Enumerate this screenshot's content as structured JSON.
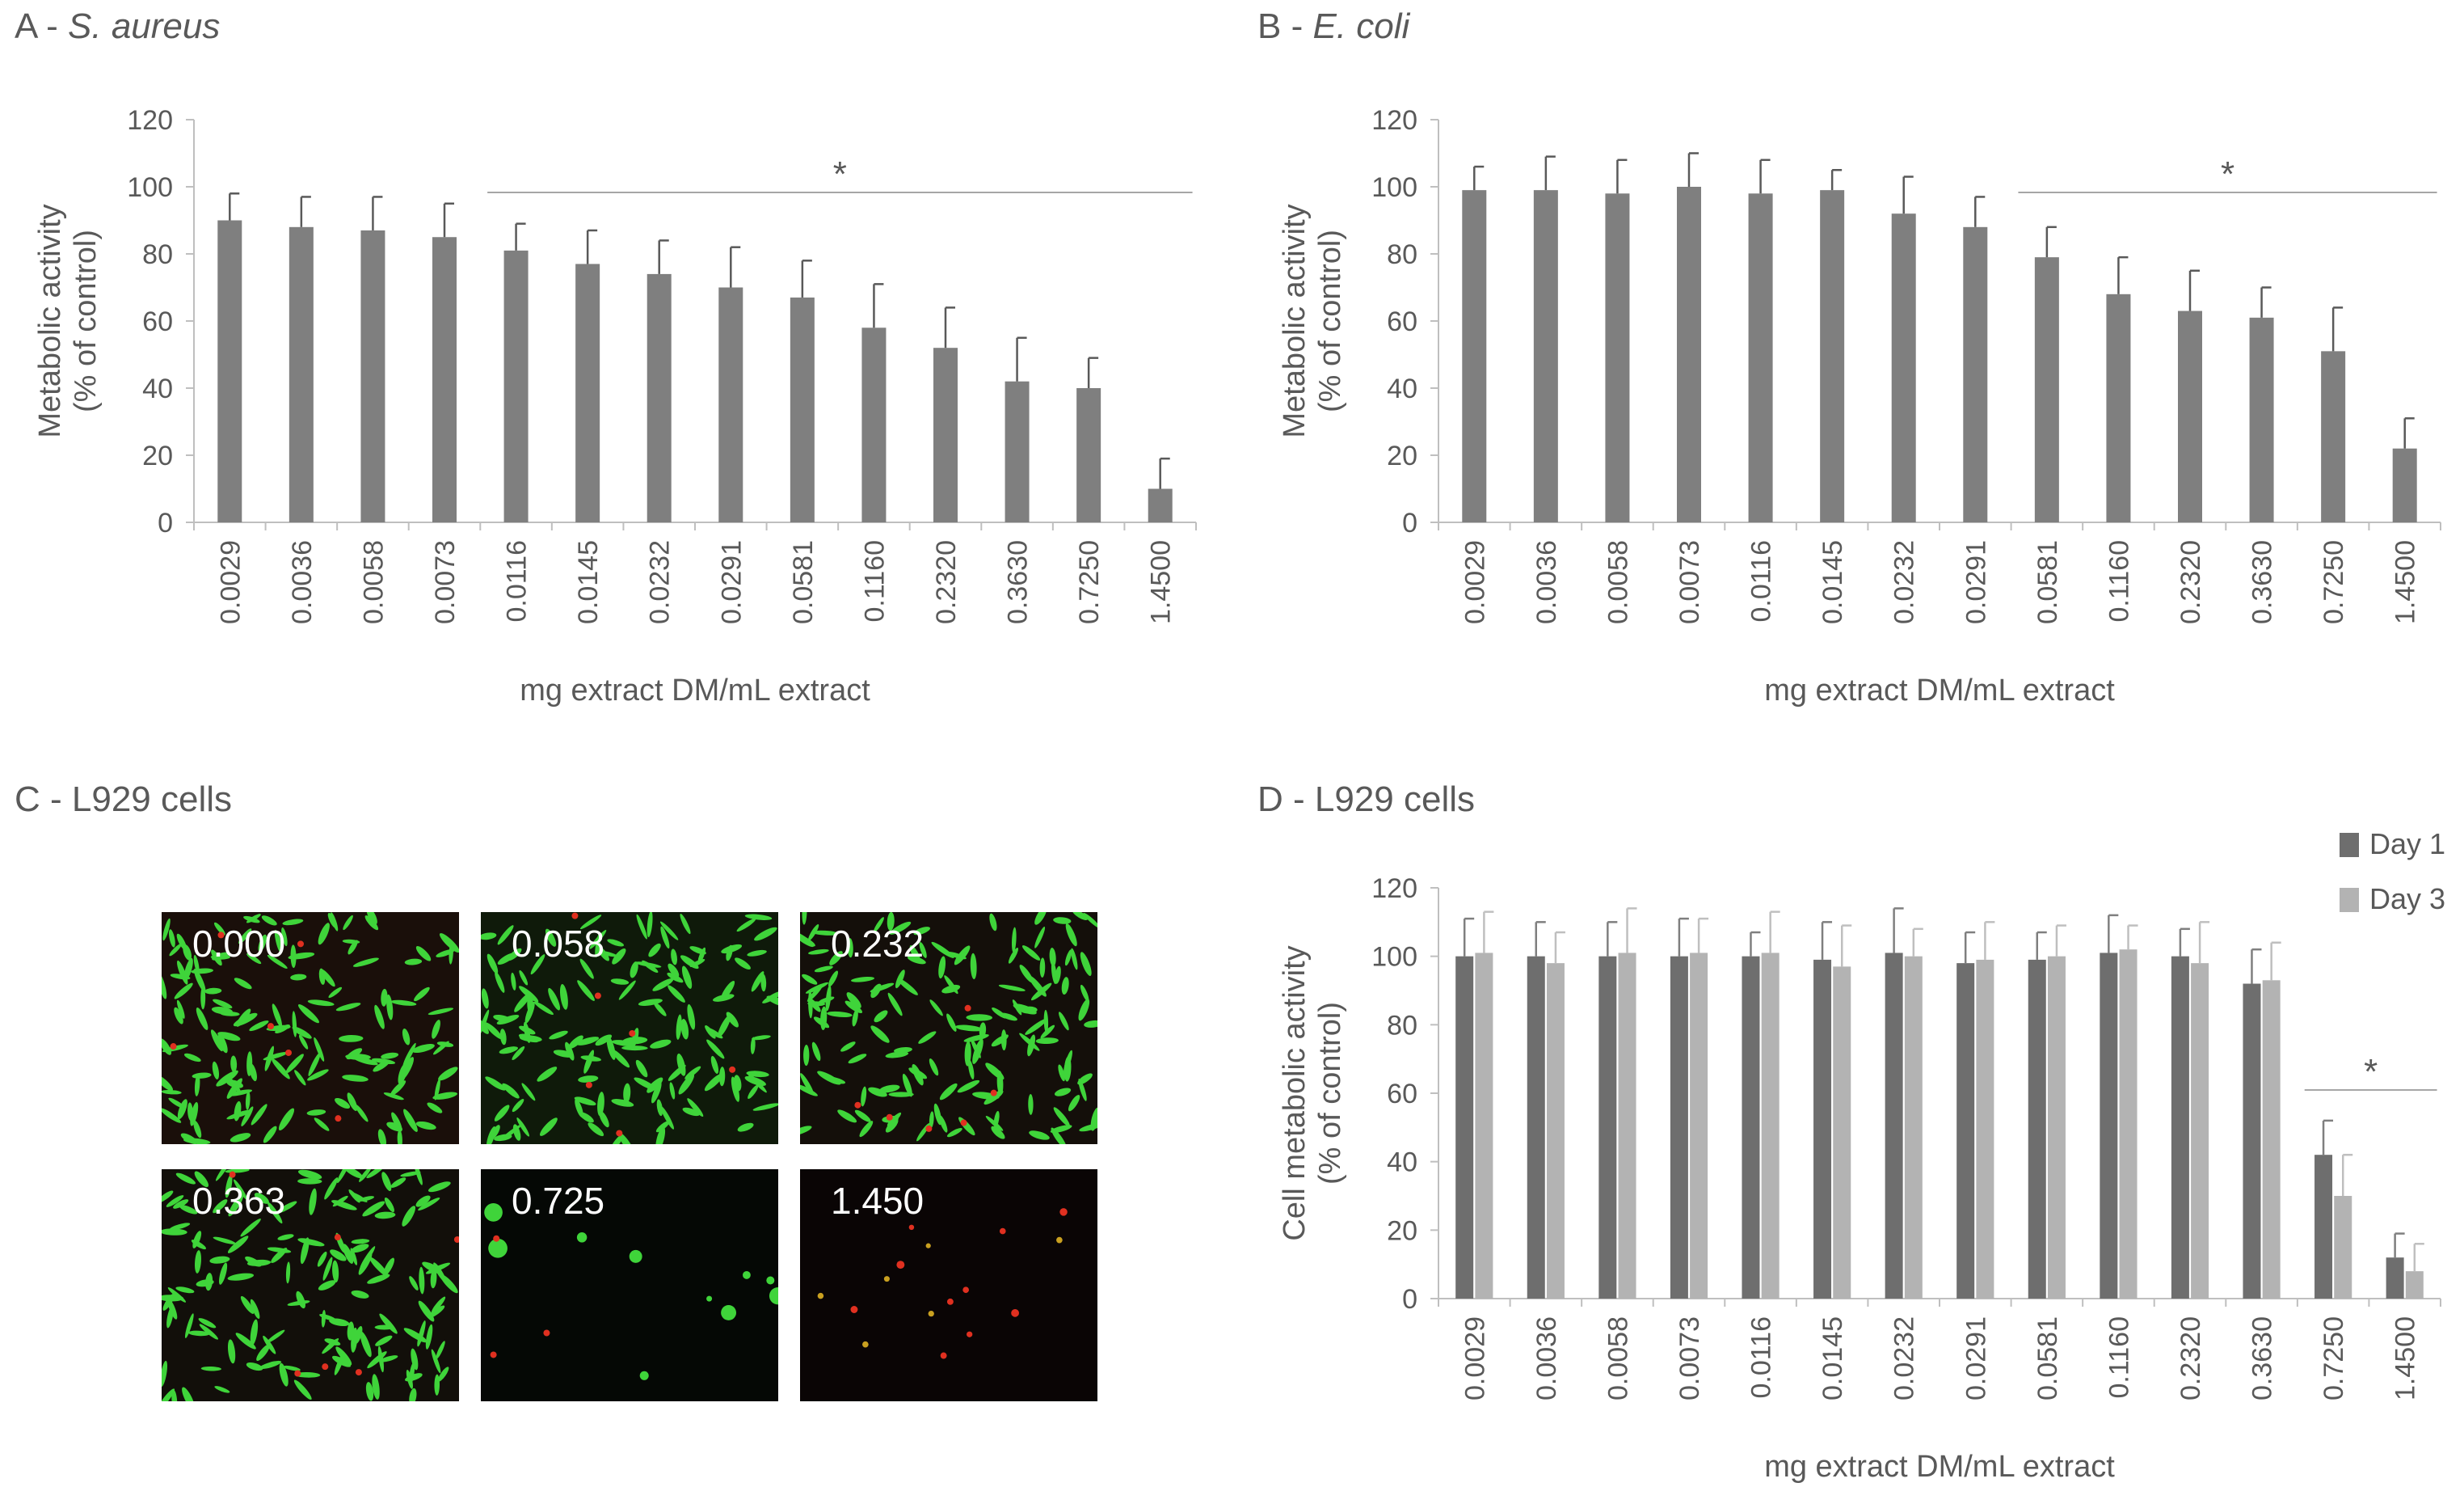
{
  "panels": {
    "a": {
      "letter": "A - ",
      "organism": "S. aureus"
    },
    "b": {
      "letter": "B - ",
      "organism": "E. coli"
    },
    "c": {
      "title": "C - L929 cells"
    },
    "d": {
      "title": "D - L929 cells"
    }
  },
  "micrographs": {
    "items": [
      {
        "label": "0.000",
        "density": "high",
        "bg": "#1a0f0a"
      },
      {
        "label": "0.058",
        "density": "high",
        "bg": "#0f1a0a"
      },
      {
        "label": "0.232",
        "density": "high",
        "bg": "#140f0a"
      },
      {
        "label": "0.363",
        "density": "high",
        "bg": "#120f0a"
      },
      {
        "label": "0.725",
        "density": "sparse",
        "bg": "#050805"
      },
      {
        "label": "1.450",
        "density": "dead",
        "bg": "#0a0505"
      }
    ],
    "colors": {
      "live": "#3fd43a",
      "dead": "#e03020"
    }
  },
  "chart_data": [
    {
      "id": "chart-a",
      "type": "bar",
      "categories": [
        "0.0029",
        "0.0036",
        "0.0058",
        "0.0073",
        "0.0116",
        "0.0145",
        "0.0232",
        "0.0291",
        "0.0581",
        "0.1160",
        "0.2320",
        "0.3630",
        "0.7250",
        "1.4500"
      ],
      "series": [
        {
          "values": [
            90,
            88,
            87,
            85,
            81,
            77,
            74,
            70,
            67,
            58,
            52,
            42,
            40,
            10
          ],
          "errors": [
            8,
            9,
            10,
            10,
            8,
            10,
            10,
            12,
            11,
            13,
            12,
            13,
            9,
            9
          ],
          "color": "#7f7f7f"
        }
      ],
      "title": "",
      "xlabel": "mg extract DM/mL extract",
      "ylabel": [
        "Metabolic activity",
        "(% of control)"
      ],
      "ylim": [
        0,
        120
      ],
      "yticks": [
        0,
        20,
        40,
        60,
        80,
        100,
        120
      ],
      "grid": false,
      "significance": {
        "symbol": "*",
        "from_index": 4,
        "to_index": 13
      }
    },
    {
      "id": "chart-b",
      "type": "bar",
      "categories": [
        "0.0029",
        "0.0036",
        "0.0058",
        "0.0073",
        "0.0116",
        "0.0145",
        "0.0232",
        "0.0291",
        "0.0581",
        "0.1160",
        "0.2320",
        "0.3630",
        "0.7250",
        "1.4500"
      ],
      "series": [
        {
          "values": [
            99,
            99,
            98,
            100,
            98,
            99,
            92,
            88,
            79,
            68,
            63,
            61,
            51,
            22
          ],
          "errors": [
            7,
            10,
            10,
            10,
            10,
            6,
            11,
            9,
            9,
            11,
            12,
            9,
            13,
            9
          ],
          "color": "#7f7f7f"
        }
      ],
      "title": "",
      "xlabel": "mg extract DM/mL extract",
      "ylabel": [
        "Metabolic activity",
        "(% of control)"
      ],
      "ylim": [
        0,
        120
      ],
      "yticks": [
        0,
        20,
        40,
        60,
        80,
        100,
        120
      ],
      "grid": false,
      "significance": {
        "symbol": "*",
        "from_index": 8,
        "to_index": 13
      }
    },
    {
      "id": "chart-d",
      "type": "bar",
      "categories": [
        "0.0029",
        "0.0036",
        "0.0058",
        "0.0073",
        "0.0116",
        "0.0145",
        "0.0232",
        "0.0291",
        "0.0581",
        "0.1160",
        "0.2320",
        "0.3630",
        "0.7250",
        "1.4500"
      ],
      "series": [
        {
          "name": "Day 1",
          "values": [
            100,
            100,
            100,
            100,
            100,
            99,
            101,
            98,
            99,
            101,
            100,
            92,
            42,
            12
          ],
          "errors": [
            11,
            10,
            10,
            11,
            7,
            11,
            13,
            9,
            8,
            11,
            8,
            10,
            10,
            7
          ],
          "color": "#6e6e6e"
        },
        {
          "name": "Day 3",
          "values": [
            101,
            98,
            101,
            101,
            101,
            97,
            100,
            99,
            100,
            102,
            98,
            93,
            30,
            8
          ],
          "errors": [
            12,
            9,
            13,
            10,
            12,
            12,
            8,
            11,
            9,
            7,
            12,
            11,
            12,
            8
          ],
          "color": "#b3b3b3"
        }
      ],
      "title": "",
      "xlabel": "mg extract DM/mL extract",
      "ylabel": [
        "Cell metabolic activity",
        "(% of control)"
      ],
      "ylim": [
        0,
        120
      ],
      "yticks": [
        0,
        20,
        40,
        60,
        80,
        100,
        120
      ],
      "grid": false,
      "legend": "top-right",
      "significance": {
        "symbol": "*",
        "from_index": 12,
        "to_index": 13
      }
    }
  ]
}
